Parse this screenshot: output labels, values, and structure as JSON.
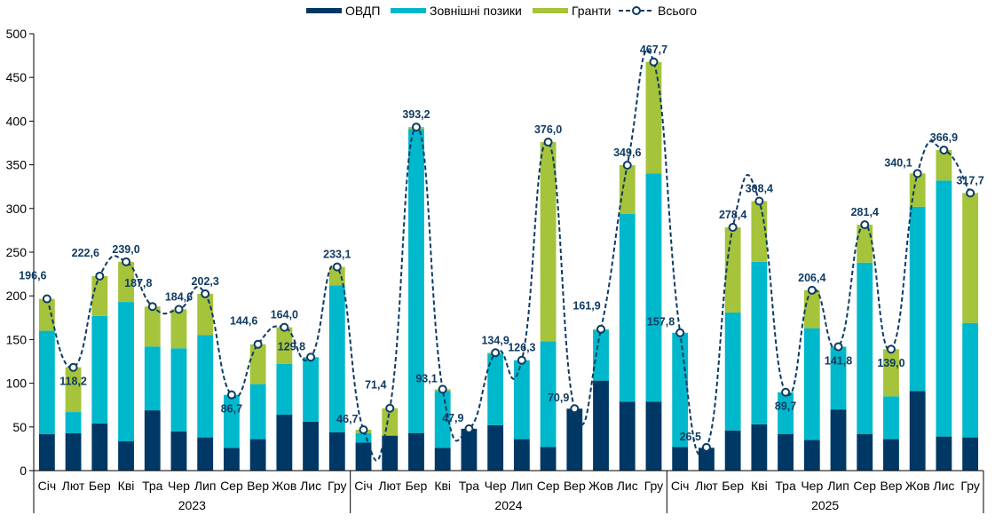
{
  "chart_data": {
    "type": "bar",
    "stacked": true,
    "title": "",
    "xlabel": "",
    "ylabel": "",
    "ylim": [
      0,
      500
    ],
    "yticks": [
      0,
      50,
      100,
      150,
      200,
      250,
      300,
      350,
      400,
      450,
      500
    ],
    "grid": false,
    "legend_position": "top-center",
    "groups": [
      {
        "label": "2023",
        "categories": [
          "Січ",
          "Лют",
          "Бер",
          "Кві",
          "Тра",
          "Чер",
          "Лип",
          "Сер",
          "Вер",
          "Жов",
          "Лис",
          "Гру"
        ]
      },
      {
        "label": "2024",
        "categories": [
          "Січ",
          "Лют",
          "Бер",
          "Кві",
          "Тра",
          "Чер",
          "Лип",
          "Сер",
          "Вер",
          "Жов",
          "Лис",
          "Гру"
        ]
      },
      {
        "label": "2025",
        "categories": [
          "Січ",
          "Лют",
          "Бер",
          "Кві",
          "Тра",
          "Чер",
          "Лип",
          "Сер",
          "Вер",
          "Жов",
          "Лис",
          "Гру"
        ]
      }
    ],
    "series": [
      {
        "name": "ОВДП",
        "type": "bar",
        "color": "#003865",
        "values": [
          41.7,
          42.7,
          54.0,
          33.5,
          69.0,
          45.0,
          38.0,
          26.0,
          36.0,
          64.0,
          56.0,
          44.0,
          32.0,
          40.0,
          43.0,
          26.0,
          47.9,
          52.0,
          36.0,
          27.0,
          70.9,
          103.0,
          79.0,
          79.0,
          27.0,
          26.0,
          46.0,
          53.0,
          42.0,
          35.0,
          70.0,
          42.0,
          36.0,
          91.0,
          39.0,
          38.0
        ]
      },
      {
        "name": "Зовнішні позики",
        "type": "bar",
        "color": "#00b8cc",
        "values": [
          118.3,
          24.3,
          123.0,
          159.5,
          73.0,
          95.0,
          117.0,
          60.7,
          63.0,
          58.0,
          73.8,
          168.0,
          11.0,
          0.0,
          348.0,
          65.0,
          0.0,
          82.0,
          90.3,
          121.0,
          0.0,
          58.0,
          215.0,
          261.0,
          130.8,
          0.0,
          135.0,
          186.0,
          47.7,
          128.0,
          71.8,
          196.0,
          49.0,
          211.0,
          293.0,
          131.0
        ]
      },
      {
        "name": "Гранти",
        "type": "bar",
        "color": "#a5c33b",
        "values": [
          36.6,
          51.2,
          45.6,
          46.0,
          45.8,
          44.6,
          47.3,
          0.0,
          45.6,
          42.0,
          0.0,
          21.1,
          3.7,
          31.4,
          2.2,
          2.1,
          0.0,
          0.9,
          0.0,
          228.0,
          0.0,
          0.9,
          55.6,
          127.7,
          0.0,
          0.5,
          97.4,
          69.4,
          0.0,
          43.4,
          0.0,
          43.4,
          54.0,
          38.1,
          34.9,
          148.7
        ]
      },
      {
        "name": "Всього",
        "type": "line",
        "color": "#0f3b63",
        "values": [
          196.6,
          118.2,
          222.6,
          239.0,
          187.8,
          184.6,
          202.3,
          86.7,
          144.6,
          164.0,
          129.8,
          233.1,
          46.7,
          71.4,
          393.2,
          93.1,
          47.9,
          134.9,
          126.3,
          376.0,
          70.9,
          161.9,
          349.6,
          467.7,
          157.8,
          26.5,
          278.4,
          308.4,
          89.7,
          206.4,
          141.8,
          281.4,
          139.0,
          340.1,
          366.9,
          317.7
        ],
        "labels": [
          "196,6",
          "118,2",
          "222,6",
          "239,0",
          "187,8",
          "184,6",
          "202,3",
          "86,7",
          "144,6",
          "164,0",
          "129,8",
          "233,1",
          "46,7",
          "71,4",
          "393,2",
          "93,1",
          "47,9",
          "134,9",
          "126,3",
          "376,0",
          "70,9",
          "161,9",
          "349,6",
          "467,7",
          "157,8",
          "26,5",
          "278,4",
          "308,4",
          "89,7",
          "206,4",
          "141,8",
          "281,4",
          "139,0",
          "340,1",
          "366,9",
          "317,7"
        ]
      }
    ]
  }
}
